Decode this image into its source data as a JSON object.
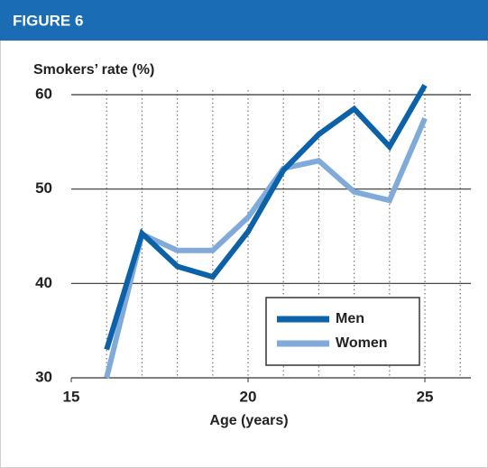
{
  "chart_data": {
    "type": "line",
    "header": "FIGURE 6",
    "ylabel": "Smokers’ rate (%)",
    "xlabel": "Age (years)",
    "x": [
      16,
      17,
      18,
      19,
      20,
      21,
      22,
      23,
      24,
      25
    ],
    "series": [
      {
        "name": "Men",
        "color": "#0b62a9",
        "values": [
          33,
          45.3,
          41.8,
          40.7,
          45.5,
          52,
          55.8,
          58.5,
          54.5,
          61
        ]
      },
      {
        "name": "Women",
        "color": "#80aad9",
        "values": [
          30,
          45.2,
          43.5,
          43.5,
          47,
          52.2,
          53,
          49.7,
          48.8,
          57.5
        ]
      }
    ],
    "xlim": [
      15,
      26.3
    ],
    "ylim": [
      30,
      60
    ],
    "xticks": [
      15,
      20,
      25
    ],
    "yticks": [
      30,
      40,
      50,
      60
    ],
    "grid": true,
    "legend": "lower right"
  }
}
